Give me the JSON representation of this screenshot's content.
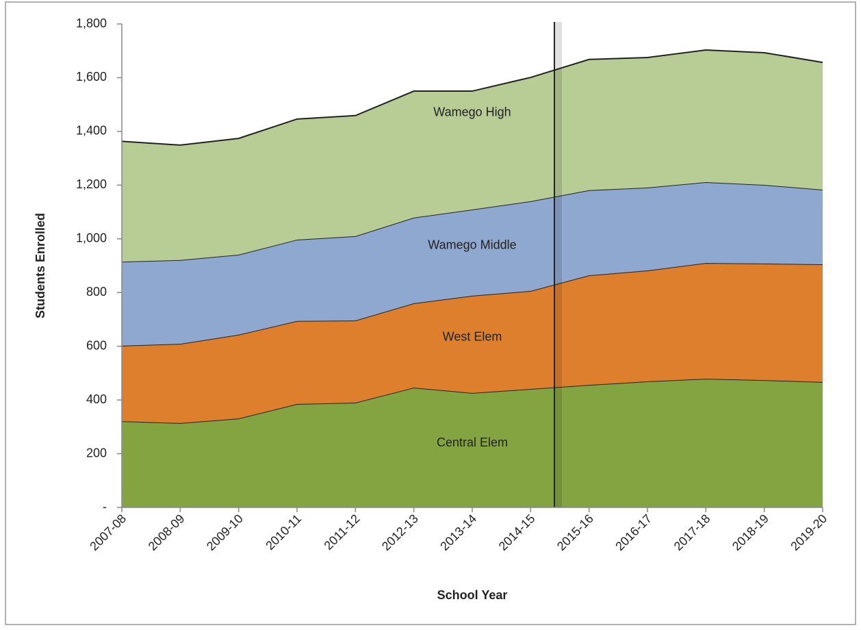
{
  "chart_data": {
    "type": "stacked_area",
    "x_label": "School Year",
    "y_label": "Students Enrolled",
    "categories": [
      "2007-08",
      "2008-09",
      "2009-10",
      "2010-11",
      "2011-12",
      "2012-13",
      "2013-14",
      "2014-15",
      "2015-16",
      "2016-17",
      "2017-18",
      "2018-19",
      "2019-20"
    ],
    "series": [
      {
        "name": "Central Elem",
        "color": "#84a441",
        "values": [
          321,
          314,
          331,
          385,
          390,
          446,
          426,
          441,
          456,
          469,
          479,
          474,
          467
        ]
      },
      {
        "name": "West Elem",
        "color": "#de7f2e",
        "values": [
          281,
          295,
          312,
          309,
          306,
          314,
          362,
          365,
          408,
          413,
          431,
          434,
          438
        ]
      },
      {
        "name": "Wamego Middle",
        "color": "#8fa8d0",
        "values": [
          313,
          312,
          298,
          303,
          314,
          319,
          321,
          334,
          317,
          309,
          301,
          293,
          278
        ]
      },
      {
        "name": "Wamego High",
        "color": "#b8cc95",
        "values": [
          448,
          428,
          433,
          449,
          449,
          471,
          441,
          461,
          487,
          484,
          492,
          492,
          474
        ]
      }
    ],
    "ylim": [
      0,
      1800
    ],
    "yticks": [
      {
        "value": 0,
        "label": "-"
      },
      200,
      400,
      600,
      800,
      {
        "value": 1000,
        "label": "1,000"
      },
      {
        "value": 1200,
        "label": "1,200"
      },
      {
        "value": 1400,
        "label": "1,400"
      },
      {
        "value": 1600,
        "label": "1,600"
      },
      {
        "value": 1800,
        "label": "1,800"
      }
    ],
    "grid": false
  }
}
